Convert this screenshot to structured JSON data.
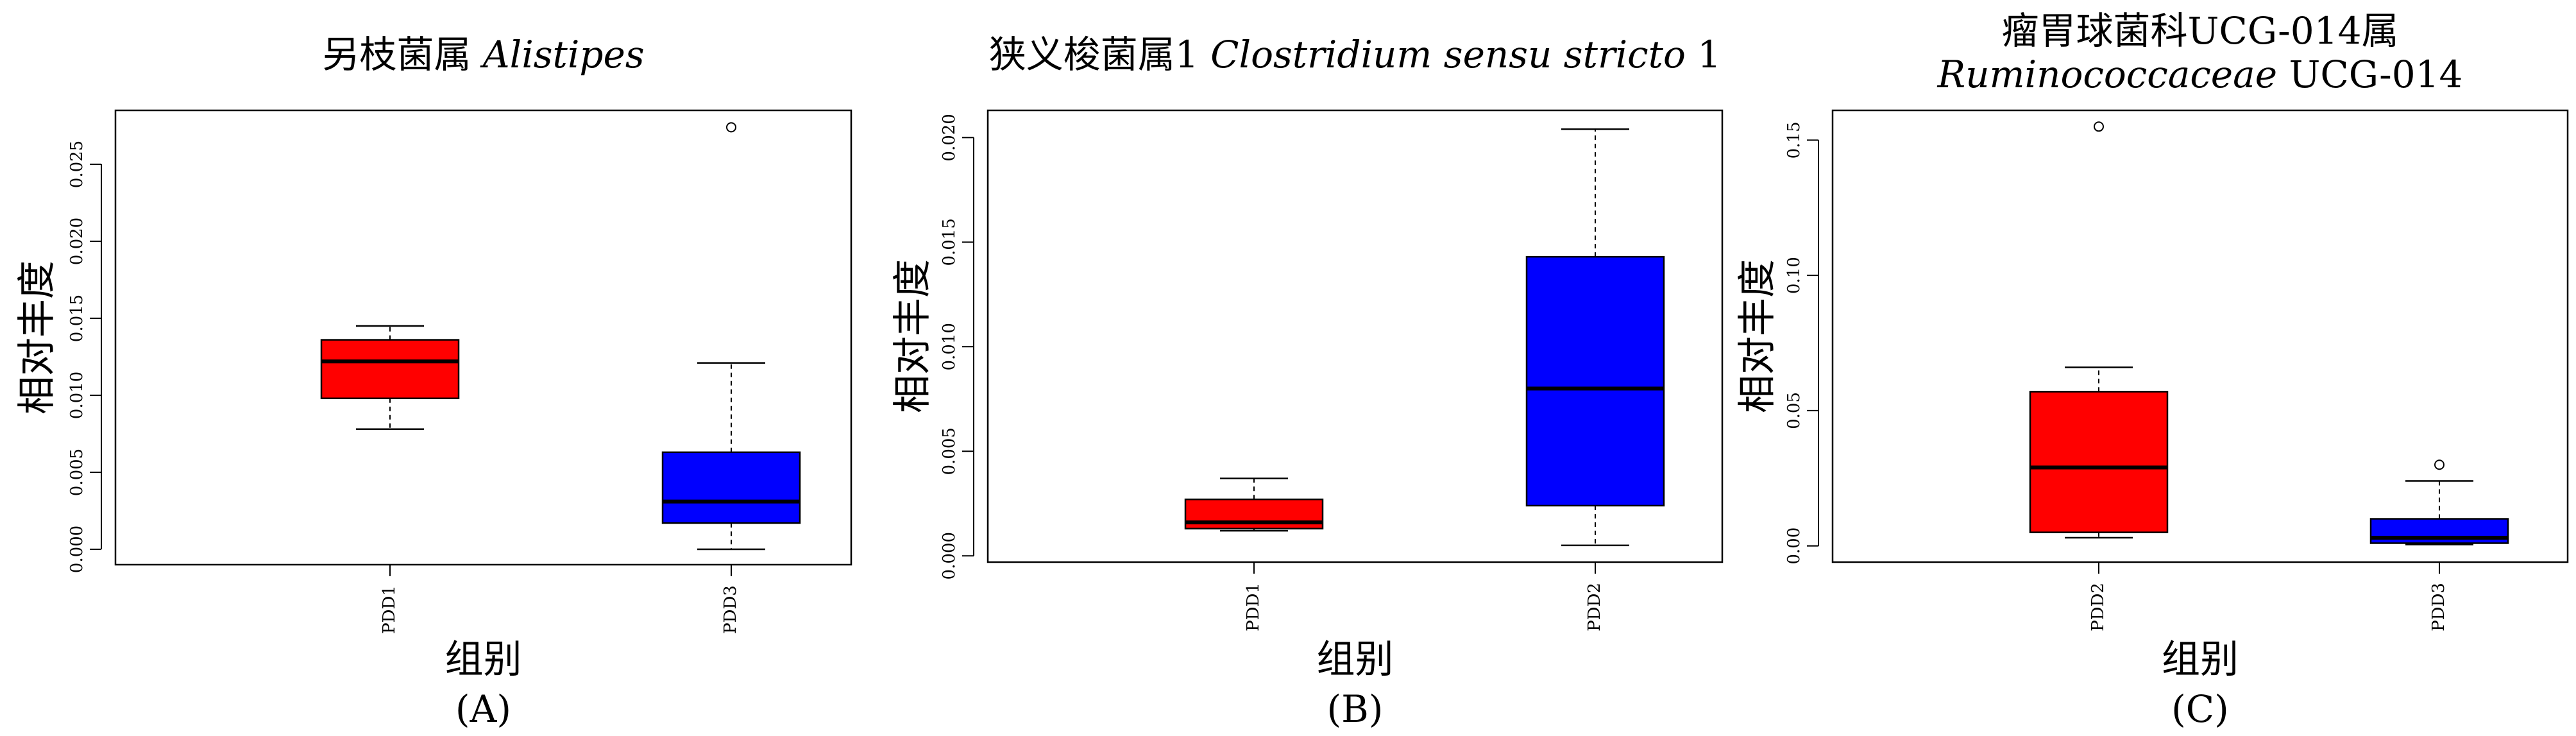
{
  "chart_data": [
    {
      "type": "boxplot",
      "panel_label": "(A)",
      "title": [
        [
          {
            "text": "另枝菌属 ",
            "italic": false
          },
          {
            "text": "Alistipes",
            "italic": true
          }
        ]
      ],
      "xlabel": "组别",
      "ylabel": "相对丰度",
      "ylim": [
        -0.001,
        0.0285
      ],
      "yticks": [
        "0.000",
        "0.005",
        "0.010",
        "0.015",
        "0.020",
        "0.025"
      ],
      "categories": [
        "PDD1",
        "PDD3"
      ],
      "boxes": [
        {
          "name": "PDD1",
          "color": "#ff0000",
          "whisker_low": 0.0078,
          "q1": 0.0098,
          "median": 0.0122,
          "q3": 0.0136,
          "whisker_high": 0.0145,
          "outliers": []
        },
        {
          "name": "PDD3",
          "color": "#0000ff",
          "whisker_low": 0.0,
          "q1": 0.0017,
          "median": 0.0031,
          "q3": 0.0063,
          "whisker_high": 0.0121,
          "outliers": [
            0.0274
          ]
        }
      ]
    },
    {
      "type": "boxplot",
      "panel_label": "(B)",
      "title": [
        [
          {
            "text": "狭义梭菌属1 ",
            "italic": false
          },
          {
            "text": "Clostridium sensu stricto",
            "italic": true
          },
          {
            "text": " 1",
            "italic": false
          }
        ]
      ],
      "xlabel": "组别",
      "ylabel": "相对丰度",
      "ylim": [
        -0.0003,
        0.0213
      ],
      "yticks": [
        "0.000",
        "0.005",
        "0.010",
        "0.015",
        "0.020"
      ],
      "categories": [
        "PDD1",
        "PDD2"
      ],
      "boxes": [
        {
          "name": "PDD1",
          "color": "#ff0000",
          "whisker_low": 0.0012,
          "q1": 0.0013,
          "median": 0.0016,
          "q3": 0.0027,
          "whisker_high": 0.0037,
          "outliers": []
        },
        {
          "name": "PDD2",
          "color": "#0000ff",
          "whisker_low": 0.0005,
          "q1": 0.0024,
          "median": 0.008,
          "q3": 0.0143,
          "whisker_high": 0.0204,
          "outliers": []
        }
      ]
    },
    {
      "type": "boxplot",
      "panel_label": "(C)",
      "title": [
        [
          {
            "text": "瘤胃球菌科UCG-014属",
            "italic": false
          }
        ],
        [
          {
            "text": "Ruminococcaceae",
            "italic": true
          },
          {
            "text": " UCG-014",
            "italic": false
          }
        ]
      ],
      "xlabel": "组别",
      "ylabel": "相对丰度",
      "ylim": [
        -0.006,
        0.161
      ],
      "yticks": [
        "0.00",
        "0.05",
        "0.10",
        "0.15"
      ],
      "categories": [
        "PDD2",
        "PDD3"
      ],
      "boxes": [
        {
          "name": "PDD2",
          "color": "#ff0000",
          "whisker_low": 0.003,
          "q1": 0.005,
          "median": 0.029,
          "q3": 0.057,
          "whisker_high": 0.066,
          "outliers": [
            0.155
          ]
        },
        {
          "name": "PDD3",
          "color": "#0000ff",
          "whisker_low": 0.0005,
          "q1": 0.001,
          "median": 0.003,
          "q3": 0.01,
          "whisker_high": 0.024,
          "outliers": [
            0.03
          ]
        }
      ]
    }
  ]
}
